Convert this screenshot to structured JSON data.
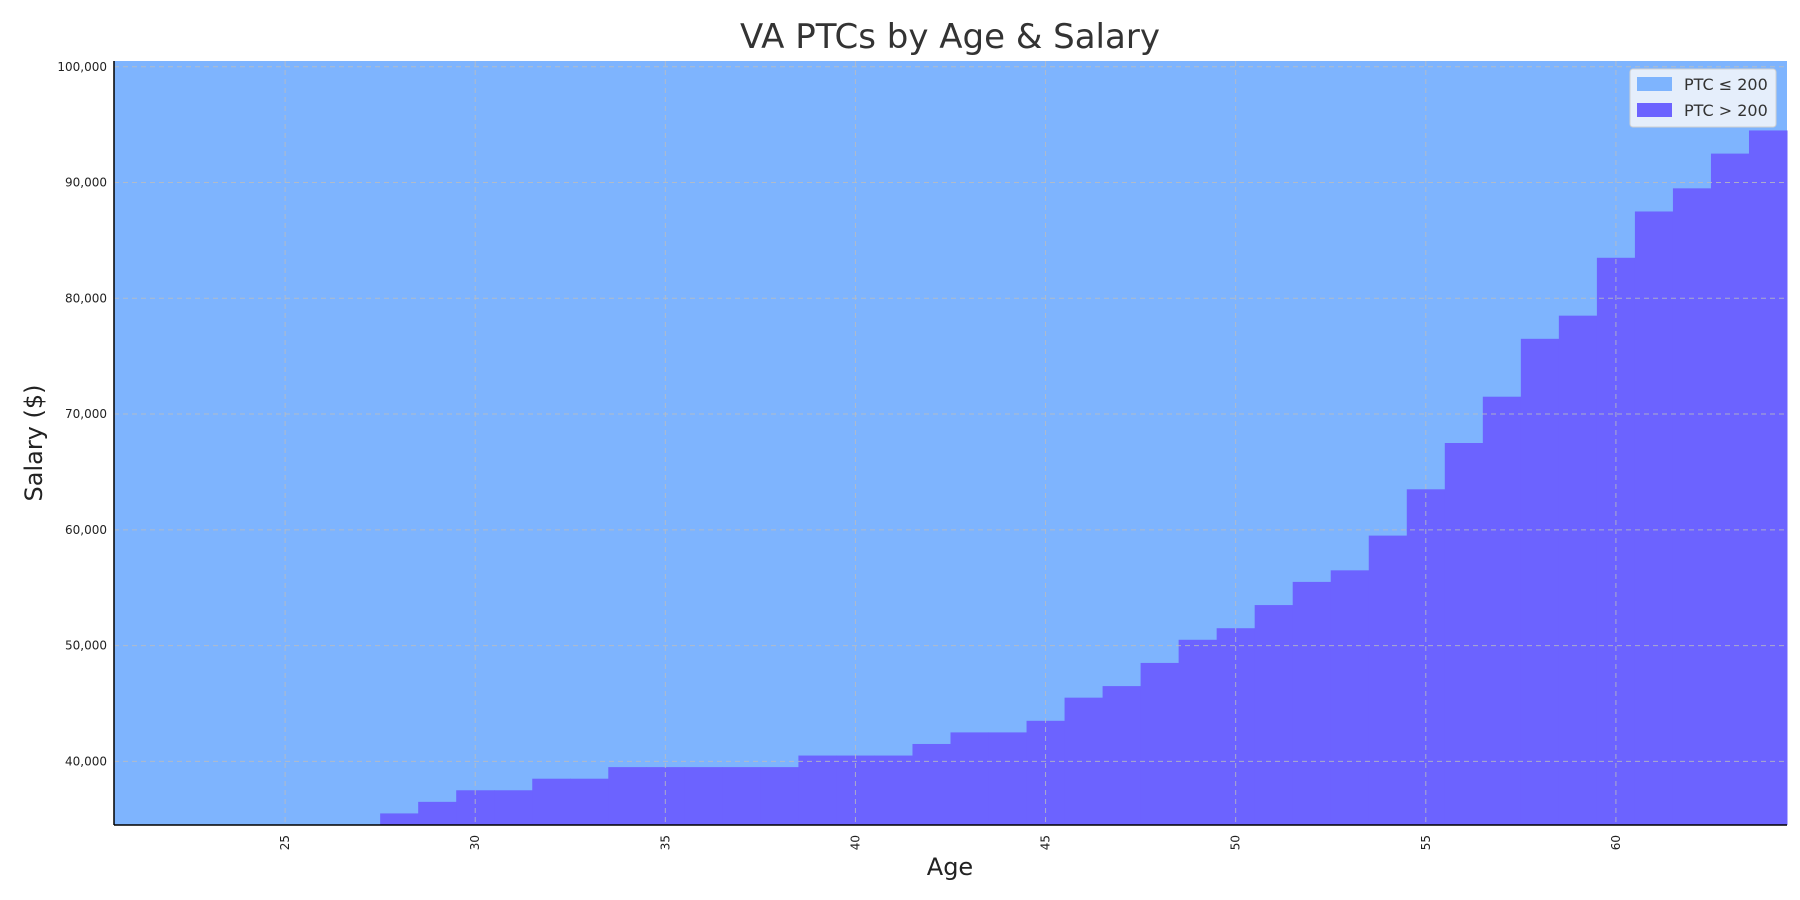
{
  "chart_data": {
    "type": "area",
    "title": "VA PTCs by Age & Salary",
    "xlabel": "Age",
    "ylabel": "Salary ($)",
    "xlim": [
      20.5,
      64.5
    ],
    "ylim": [
      34500,
      100500
    ],
    "x_ticks": [
      25,
      30,
      35,
      40,
      45,
      50,
      55,
      60
    ],
    "y_ticks": [
      40000,
      50000,
      60000,
      70000,
      80000,
      90000,
      100000
    ],
    "y_tick_labels": [
      "40,000",
      "50,000",
      "60,000",
      "70,000",
      "80,000",
      "90,000",
      "100,000"
    ],
    "grid": true,
    "legend_position": "top-right",
    "step": true,
    "series": [
      {
        "name": "PTC ≤ 200",
        "color": "#7eb4fe"
      },
      {
        "name": "PTC > 200",
        "color": "#6c63ff"
      }
    ],
    "boundary": {
      "x": [
        21,
        22,
        23,
        24,
        25,
        26,
        27,
        28,
        29,
        30,
        31,
        32,
        33,
        34,
        35,
        36,
        37,
        38,
        39,
        40,
        41,
        42,
        43,
        44,
        45,
        46,
        47,
        48,
        49,
        50,
        51,
        52,
        53,
        54,
        55,
        56,
        57,
        58,
        59,
        60,
        61,
        62,
        63,
        64
      ],
      "y": [
        34500,
        34500,
        34500,
        34500,
        34500,
        34500,
        34500,
        35500,
        36500,
        37500,
        37500,
        38500,
        38500,
        39500,
        39500,
        39500,
        39500,
        39500,
        40500,
        40500,
        40500,
        41500,
        42500,
        42500,
        43500,
        45500,
        46500,
        48500,
        50500,
        51500,
        53500,
        55500,
        56500,
        59500,
        63500,
        67500,
        71500,
        76500,
        78500,
        83500,
        87500,
        89500,
        92500,
        94500
      ]
    }
  }
}
